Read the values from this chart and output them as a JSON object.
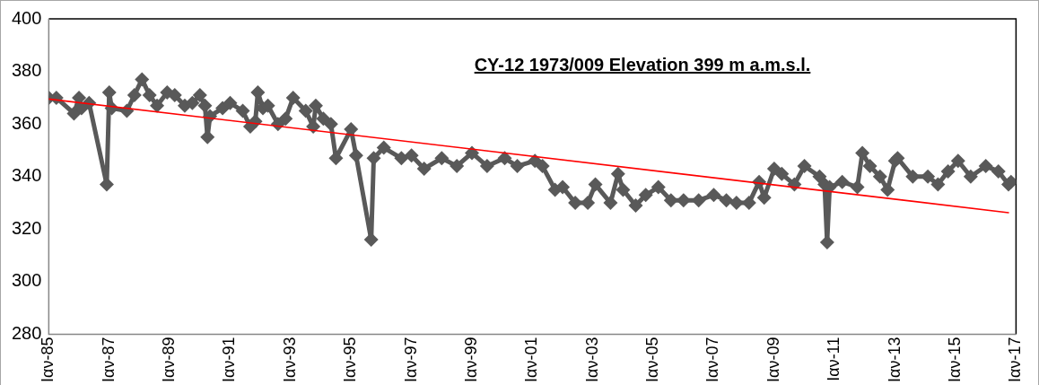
{
  "chart_data": {
    "type": "line",
    "title": "CY-12 1973/009 Elevation 399 m a.m.s.l.",
    "marker": "diamond",
    "legend": false,
    "grid": false,
    "ylim": [
      280,
      400
    ],
    "yticks": [
      280,
      300,
      320,
      340,
      360,
      380,
      400
    ],
    "xlim": [
      "1985-01",
      "2017-01"
    ],
    "xticks": [
      {
        "value": "1985-01",
        "label": "Ιαν-85"
      },
      {
        "value": "1987-01",
        "label": "Ιαν-87"
      },
      {
        "value": "1989-01",
        "label": "Ιαν-89"
      },
      {
        "value": "1991-01",
        "label": "Ιαν-91"
      },
      {
        "value": "1993-01",
        "label": "Ιαν-93"
      },
      {
        "value": "1995-01",
        "label": "Ιαν-95"
      },
      {
        "value": "1997-01",
        "label": "Ιαν-97"
      },
      {
        "value": "1999-01",
        "label": "Ιαν-99"
      },
      {
        "value": "2001-01",
        "label": "Ιαν-01"
      },
      {
        "value": "2003-01",
        "label": "Ιαν-03"
      },
      {
        "value": "2005-01",
        "label": "Ιαν-05"
      },
      {
        "value": "2007-01",
        "label": "Ιαν-07"
      },
      {
        "value": "2009-01",
        "label": "Ιαν-09"
      },
      {
        "value": "2011-01",
        "label": "Ιαν-11"
      },
      {
        "value": "2013-01",
        "label": "Ιαν-13"
      },
      {
        "value": "2015-01",
        "label": "Ιαν-15"
      },
      {
        "value": "2017-01",
        "label": "Ιαν-17"
      }
    ],
    "series": [
      {
        "type": "line",
        "color": "#595959",
        "x": [
          "1985-01",
          "1985-04",
          "1985-11",
          "1986-01",
          "1986-02",
          "1986-05",
          "1986-12",
          "1987-01",
          "1987-02",
          "1987-08",
          "1987-11",
          "1988-02",
          "1988-05",
          "1988-08",
          "1988-12",
          "1989-03",
          "1989-07",
          "1989-10",
          "1990-01",
          "1990-03",
          "1990-04",
          "1990-05",
          "1990-10",
          "1991-01",
          "1991-06",
          "1991-09",
          "1991-11",
          "1991-12",
          "1992-02",
          "1992-04",
          "1992-08",
          "1992-11",
          "1993-02",
          "1993-07",
          "1993-10",
          "1993-11",
          "1994-02",
          "1994-05",
          "1994-07",
          "1995-01",
          "1995-03",
          "1995-09",
          "1995-10",
          "1996-02",
          "1996-09",
          "1997-01",
          "1997-06",
          "1998-01",
          "1998-07",
          "1999-01",
          "1999-07",
          "2000-02",
          "2000-07",
          "2001-02",
          "2001-05",
          "2001-10",
          "2002-01",
          "2002-06",
          "2002-11",
          "2003-02",
          "2003-08",
          "2003-11",
          "2004-01",
          "2004-06",
          "2004-10",
          "2005-03",
          "2005-08",
          "2006-01",
          "2006-07",
          "2007-01",
          "2007-06",
          "2007-10",
          "2008-03",
          "2008-07",
          "2008-09",
          "2009-01",
          "2009-04",
          "2009-09",
          "2010-01",
          "2010-07",
          "2010-09",
          "2010-10",
          "2010-11",
          "2011-04",
          "2011-10",
          "2011-12",
          "2012-03",
          "2012-07",
          "2012-10",
          "2013-01",
          "2013-02",
          "2013-08",
          "2014-02",
          "2014-06",
          "2014-10",
          "2015-02",
          "2015-07",
          "2016-01",
          "2016-06",
          "2016-10",
          "2016-11"
        ],
        "values": [
          370,
          370,
          364,
          370,
          366,
          368,
          337,
          372,
          366,
          365,
          371,
          377,
          371,
          367,
          372,
          371,
          367,
          368,
          371,
          367,
          355,
          363,
          366,
          368,
          365,
          359,
          361,
          372,
          366,
          367,
          360,
          362,
          370,
          365,
          359,
          367,
          362,
          360,
          347,
          358,
          348,
          316,
          347,
          351,
          347,
          348,
          343,
          347,
          344,
          349,
          344,
          347,
          344,
          346,
          344,
          335,
          336,
          330,
          330,
          337,
          330,
          341,
          335,
          329,
          333,
          336,
          331,
          331,
          331,
          333,
          331,
          330,
          330,
          338,
          332,
          343,
          341,
          337,
          344,
          340,
          337,
          315,
          336,
          338,
          336,
          349,
          344,
          340,
          335,
          346,
          347,
          340,
          340,
          337,
          342,
          346,
          340,
          344,
          342,
          337,
          338
        ]
      },
      {
        "type": "line",
        "color": "#ff0000",
        "marker": "none",
        "x": [
          "1985-01",
          "2016-10"
        ],
        "values": [
          369.5,
          326.3
        ]
      }
    ]
  }
}
